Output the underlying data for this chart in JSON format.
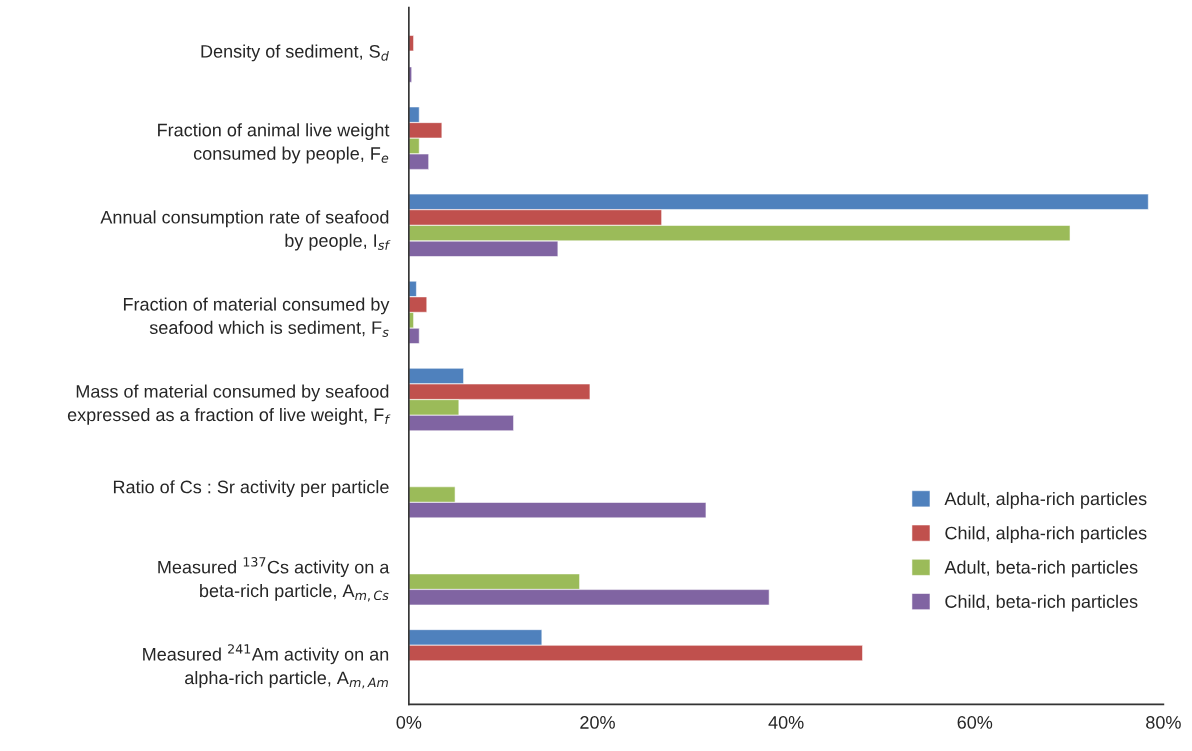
{
  "chart_data": {
    "type": "bar",
    "orientation": "horizontal",
    "categories": [
      "Density of sediment, S$_{d}$",
      "Fraction of animal live weight\nconsumed by people, F$_{e}$",
      "Annual consumption rate of seafood\nby people, I$_{sf}$",
      "Fraction of material consumed by\nseafood which is sediment, F$_{s}$",
      "Mass of material consumed by seafood\nexpressed as a fraction of live weight, F$_{f}$",
      "Ratio of Cs : Sr activity per particle",
      "Measured $^{137}$Cs activity on a\nbeta-rich particle, A$_{m,Cs}$",
      "Measured $^{241}$Am activity on an\nalpha-rich particle, A$_{m,Am}$"
    ],
    "series": [
      {
        "name": "Adult, alpha-rich particles",
        "color": "#4f81bd",
        "values": [
          null,
          1.1,
          78.4,
          0.8,
          5.8,
          null,
          null,
          14.1
        ]
      },
      {
        "name": "Child, alpha-rich particles",
        "color": "#c0504d",
        "values": [
          0.5,
          3.5,
          26.8,
          1.9,
          19.2,
          null,
          null,
          48.1
        ]
      },
      {
        "name": "Adult, beta-rich particles",
        "color": "#9bbb59",
        "values": [
          null,
          1.1,
          70.1,
          0.5,
          5.3,
          4.9,
          18.1,
          null
        ]
      },
      {
        "name": "Child, beta-rich particles",
        "color": "#8064a2",
        "values": [
          0.3,
          2.1,
          15.8,
          1.1,
          11.1,
          31.5,
          38.2,
          null
        ]
      }
    ],
    "xlim": [
      0,
      80
    ],
    "xticks": [
      {
        "value": 0,
        "label": "0%"
      },
      {
        "value": 20,
        "label": "20%"
      },
      {
        "value": 40,
        "label": "40%"
      },
      {
        "value": 60,
        "label": "60%"
      },
      {
        "value": 80,
        "label": "80%"
      }
    ],
    "grid": false,
    "legend": "bottom right"
  }
}
